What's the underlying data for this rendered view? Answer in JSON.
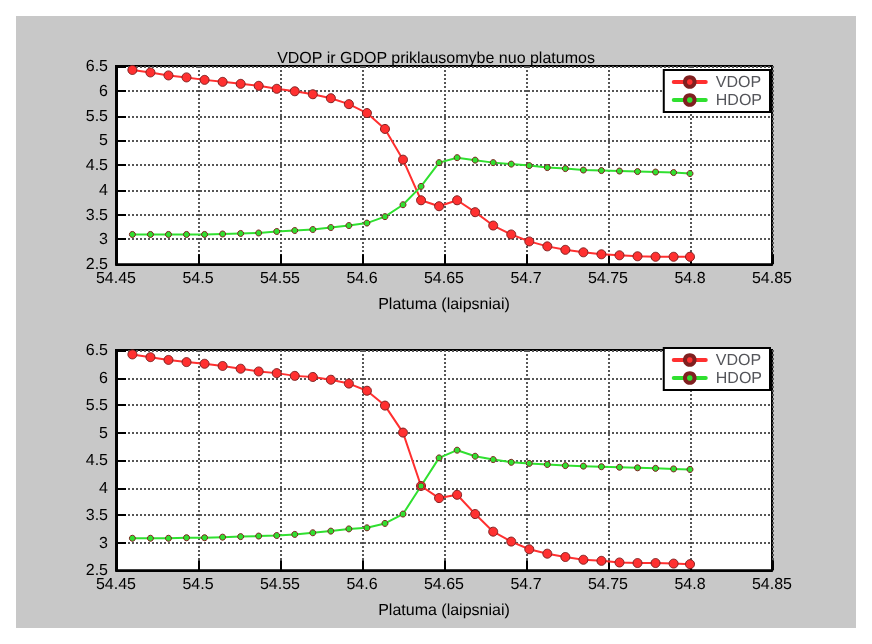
{
  "chart_data": [
    {
      "type": "line",
      "title": "VDOP ir GDOP priklausomybe nuo platumos",
      "xlabel": "Platuma (laipsniai)",
      "x": [
        54.46,
        54.471,
        54.482,
        54.493,
        54.504,
        54.515,
        54.526,
        54.537,
        54.548,
        54.559,
        54.57,
        54.581,
        54.592,
        54.603,
        54.614,
        54.625,
        54.636,
        54.647,
        54.658,
        54.669,
        54.68,
        54.691,
        54.702,
        54.713,
        54.724,
        54.735,
        54.746,
        54.757,
        54.768,
        54.779,
        54.79,
        54.8
      ],
      "series": [
        {
          "name": "VDOP",
          "color": "#ff3030",
          "values": [
            6.42,
            6.37,
            6.31,
            6.27,
            6.22,
            6.18,
            6.14,
            6.1,
            6.04,
            5.99,
            5.93,
            5.85,
            5.73,
            5.55,
            5.23,
            4.61,
            3.79,
            3.67,
            3.79,
            3.55,
            3.28,
            3.1,
            2.96,
            2.86,
            2.79,
            2.74,
            2.7,
            2.68,
            2.66,
            2.65,
            2.65,
            2.65
          ]
        },
        {
          "name": "HDOP",
          "color": "#30e030",
          "values": [
            3.1,
            3.1,
            3.1,
            3.1,
            3.1,
            3.11,
            3.12,
            3.13,
            3.16,
            3.18,
            3.2,
            3.24,
            3.28,
            3.33,
            3.46,
            3.7,
            4.07,
            4.55,
            4.65,
            4.6,
            4.55,
            4.52,
            4.49,
            4.45,
            4.43,
            4.4,
            4.39,
            4.38,
            4.37,
            4.36,
            4.35,
            4.33
          ]
        }
      ],
      "xlim": [
        54.45,
        54.85
      ],
      "xticks": [
        54.45,
        54.5,
        54.55,
        54.6,
        54.65,
        54.7,
        54.75,
        54.8,
        54.85
      ],
      "ylim": [
        2.5,
        6.5
      ],
      "yticks": [
        2.5,
        3,
        3.5,
        4,
        4.5,
        5,
        5.5,
        6,
        6.5
      ],
      "grid": true,
      "legend": "top right",
      "marker": "circle",
      "line_style": "solid"
    },
    {
      "type": "line",
      "xlabel": "Platuma (laipsniai)",
      "x": [
        54.46,
        54.471,
        54.482,
        54.493,
        54.504,
        54.515,
        54.526,
        54.537,
        54.548,
        54.559,
        54.57,
        54.581,
        54.592,
        54.603,
        54.614,
        54.625,
        54.636,
        54.647,
        54.658,
        54.669,
        54.68,
        54.691,
        54.702,
        54.713,
        54.724,
        54.735,
        54.746,
        54.757,
        54.768,
        54.779,
        54.79,
        54.8
      ],
      "series": [
        {
          "name": "VDOP",
          "color": "#ff3030",
          "values": [
            6.42,
            6.37,
            6.32,
            6.28,
            6.25,
            6.21,
            6.16,
            6.11,
            6.08,
            6.03,
            6.01,
            5.96,
            5.89,
            5.76,
            5.49,
            5.0,
            4.03,
            3.81,
            3.87,
            3.52,
            3.2,
            3.02,
            2.88,
            2.8,
            2.74,
            2.69,
            2.67,
            2.64,
            2.63,
            2.63,
            2.62,
            2.61
          ]
        },
        {
          "name": "HDOP",
          "color": "#30e030",
          "values": [
            3.08,
            3.08,
            3.08,
            3.09,
            3.09,
            3.1,
            3.11,
            3.12,
            3.13,
            3.15,
            3.18,
            3.21,
            3.25,
            3.27,
            3.35,
            3.52,
            4.03,
            4.54,
            4.68,
            4.57,
            4.51,
            4.46,
            4.44,
            4.42,
            4.4,
            4.39,
            4.38,
            4.37,
            4.36,
            4.35,
            4.34,
            4.33
          ]
        }
      ],
      "xlim": [
        54.45,
        54.85
      ],
      "xticks": [
        54.45,
        54.5,
        54.55,
        54.6,
        54.65,
        54.7,
        54.75,
        54.8,
        54.85
      ],
      "ylim": [
        2.5,
        6.5
      ],
      "yticks": [
        2.5,
        3,
        3.5,
        4,
        4.5,
        5,
        5.5,
        6,
        6.5
      ],
      "grid": true,
      "legend": "top right",
      "marker": "circle",
      "line_style": "solid"
    }
  ]
}
